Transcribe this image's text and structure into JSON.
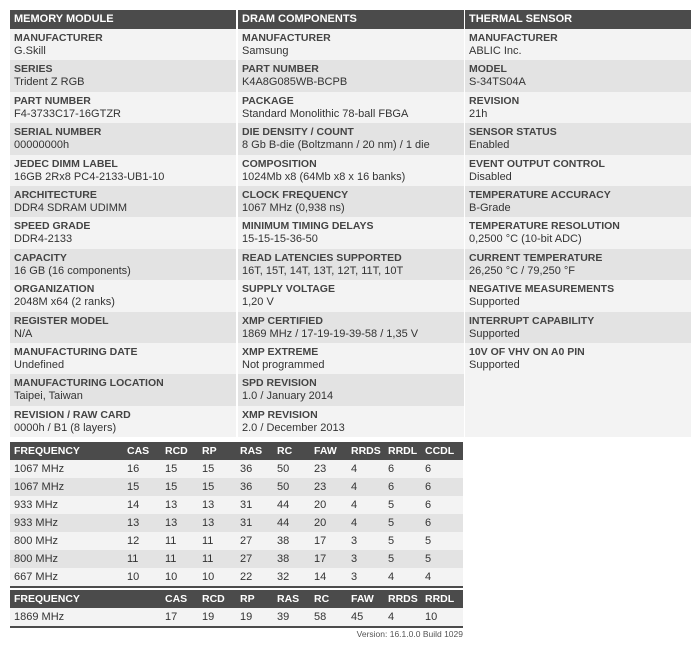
{
  "sections": [
    {
      "title": "MEMORY MODULE",
      "items": [
        {
          "label": "MANUFACTURER",
          "value": "G.Skill"
        },
        {
          "label": "SERIES",
          "value": "Trident Z RGB"
        },
        {
          "label": "PART NUMBER",
          "value": "F4-3733C17-16GTZR"
        },
        {
          "label": "SERIAL NUMBER",
          "value": "00000000h"
        },
        {
          "label": "JEDEC DIMM LABEL",
          "value": "16GB 2Rx8 PC4-2133-UB1-10"
        },
        {
          "label": "ARCHITECTURE",
          "value": "DDR4 SDRAM UDIMM"
        },
        {
          "label": "SPEED GRADE",
          "value": "DDR4-2133"
        },
        {
          "label": "CAPACITY",
          "value": "16 GB (16 components)"
        },
        {
          "label": "ORGANIZATION",
          "value": "2048M x64 (2 ranks)"
        },
        {
          "label": "REGISTER MODEL",
          "value": "N/A"
        },
        {
          "label": "MANUFACTURING DATE",
          "value": "Undefined"
        },
        {
          "label": "MANUFACTURING LOCATION",
          "value": "Taipei, Taiwan"
        },
        {
          "label": "REVISION / RAW CARD",
          "value": "0000h / B1 (8 layers)"
        }
      ]
    },
    {
      "title": "DRAM COMPONENTS",
      "items": [
        {
          "label": "MANUFACTURER",
          "value": "Samsung"
        },
        {
          "label": "PART NUMBER",
          "value": "K4A8G085WB-BCPB"
        },
        {
          "label": "PACKAGE",
          "value": "Standard Monolithic 78-ball FBGA"
        },
        {
          "label": "DIE DENSITY / COUNT",
          "value": "8 Gb B-die (Boltzmann / 20 nm) / 1 die"
        },
        {
          "label": "COMPOSITION",
          "value": "1024Mb x8 (64Mb x8 x 16 banks)"
        },
        {
          "label": "CLOCK FREQUENCY",
          "value": "1067 MHz (0,938 ns)"
        },
        {
          "label": "MINIMUM TIMING DELAYS",
          "value": "15-15-15-36-50"
        },
        {
          "label": "READ LATENCIES SUPPORTED",
          "value": "16T, 15T, 14T, 13T, 12T, 11T, 10T"
        },
        {
          "label": "SUPPLY VOLTAGE",
          "value": "1,20 V"
        },
        {
          "label": "XMP CERTIFIED",
          "value": "1869 MHz / 17-19-19-39-58 / 1,35 V"
        },
        {
          "label": "XMP EXTREME",
          "value": "Not programmed"
        },
        {
          "label": "SPD REVISION",
          "value": "1.0 / January 2014"
        },
        {
          "label": "XMP REVISION",
          "value": "2.0 / December 2013"
        }
      ]
    },
    {
      "title": "THERMAL SENSOR",
      "items": [
        {
          "label": "MANUFACTURER",
          "value": "ABLIC Inc."
        },
        {
          "label": "MODEL",
          "value": "S-34TS04A"
        },
        {
          "label": "REVISION",
          "value": "21h"
        },
        {
          "label": "SENSOR STATUS",
          "value": "Enabled"
        },
        {
          "label": "EVENT OUTPUT CONTROL",
          "value": "Disabled"
        },
        {
          "label": "TEMPERATURE ACCURACY",
          "value": "B-Grade"
        },
        {
          "label": "TEMPERATURE RESOLUTION",
          "value": "0,2500 °C (10-bit ADC)"
        },
        {
          "label": "CURRENT TEMPERATURE",
          "value": "26,250 °C / 79,250 °F"
        },
        {
          "label": "NEGATIVE MEASUREMENTS",
          "value": "Supported"
        },
        {
          "label": "INTERRUPT CAPABILITY",
          "value": "Supported"
        },
        {
          "label": "10V OF VHV ON A0 PIN",
          "value": "Supported"
        }
      ]
    }
  ],
  "jedec_table": {
    "headers": [
      "FREQUENCY",
      "CAS",
      "RCD",
      "RP",
      "RAS",
      "RC",
      "FAW",
      "RRDS",
      "RRDL",
      "CCDL"
    ],
    "rows": [
      [
        "1067 MHz",
        "16",
        "15",
        "15",
        "36",
        "50",
        "23",
        "4",
        "6",
        "6"
      ],
      [
        "1067 MHz",
        "15",
        "15",
        "15",
        "36",
        "50",
        "23",
        "4",
        "6",
        "6"
      ],
      [
        "933 MHz",
        "14",
        "13",
        "13",
        "31",
        "44",
        "20",
        "4",
        "5",
        "6"
      ],
      [
        "933 MHz",
        "13",
        "13",
        "13",
        "31",
        "44",
        "20",
        "4",
        "5",
        "6"
      ],
      [
        "800 MHz",
        "12",
        "11",
        "11",
        "27",
        "38",
        "17",
        "3",
        "5",
        "5"
      ],
      [
        "800 MHz",
        "11",
        "11",
        "11",
        "27",
        "38",
        "17",
        "3",
        "5",
        "5"
      ],
      [
        "667 MHz",
        "10",
        "10",
        "10",
        "22",
        "32",
        "14",
        "3",
        "4",
        "4"
      ]
    ]
  },
  "xmp_table": {
    "headers": [
      "FREQUENCY",
      "CAS",
      "RCD",
      "RP",
      "RAS",
      "RC",
      "FAW",
      "RRDS",
      "RRDL"
    ],
    "rows": [
      [
        "1869 MHz",
        "17",
        "19",
        "19",
        "39",
        "58",
        "45",
        "4",
        "10"
      ]
    ]
  },
  "version": "Version: 16.1.0.0 Build 1029"
}
